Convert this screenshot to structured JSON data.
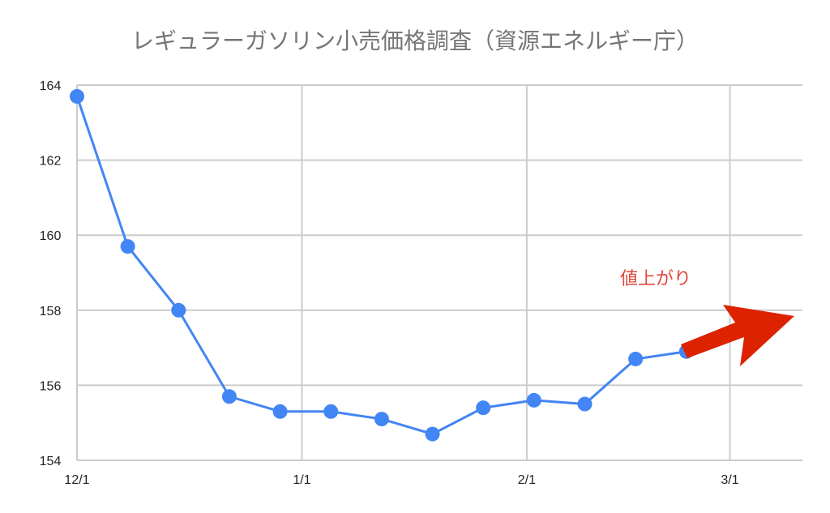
{
  "chart_data": {
    "type": "line",
    "title": "レギュラーガソリン小売価格調査（資源エネルギー庁）",
    "xlabel": "",
    "ylabel": "",
    "x": [
      "12/1",
      "12/8",
      "12/15",
      "12/22",
      "12/29",
      "1/5",
      "1/12",
      "1/19",
      "1/26",
      "2/2",
      "2/9",
      "2/16",
      "2/23"
    ],
    "series": [
      {
        "values": [
          163.7,
          159.7,
          158.0,
          155.7,
          155.3,
          155.3,
          155.1,
          154.7,
          155.4,
          155.6,
          155.5,
          156.7,
          156.9
        ]
      }
    ],
    "ylim": [
      154,
      164
    ],
    "yticks": [
      "154",
      "156",
      "158",
      "160",
      "162",
      "164"
    ],
    "xticks": [
      "12/1",
      "1/1",
      "2/1",
      "3/1"
    ],
    "xlim": [
      "12/1",
      "3/11"
    ],
    "grid": true,
    "legend": "none",
    "annotation": {
      "text": "値上がり",
      "arrow": "red arrow pointing up-right"
    },
    "colors": {
      "series": "#4285f4",
      "grid": "#cccccc",
      "annotation": "#e0463b",
      "arrow": "#dd2200",
      "title": "#757575"
    }
  }
}
